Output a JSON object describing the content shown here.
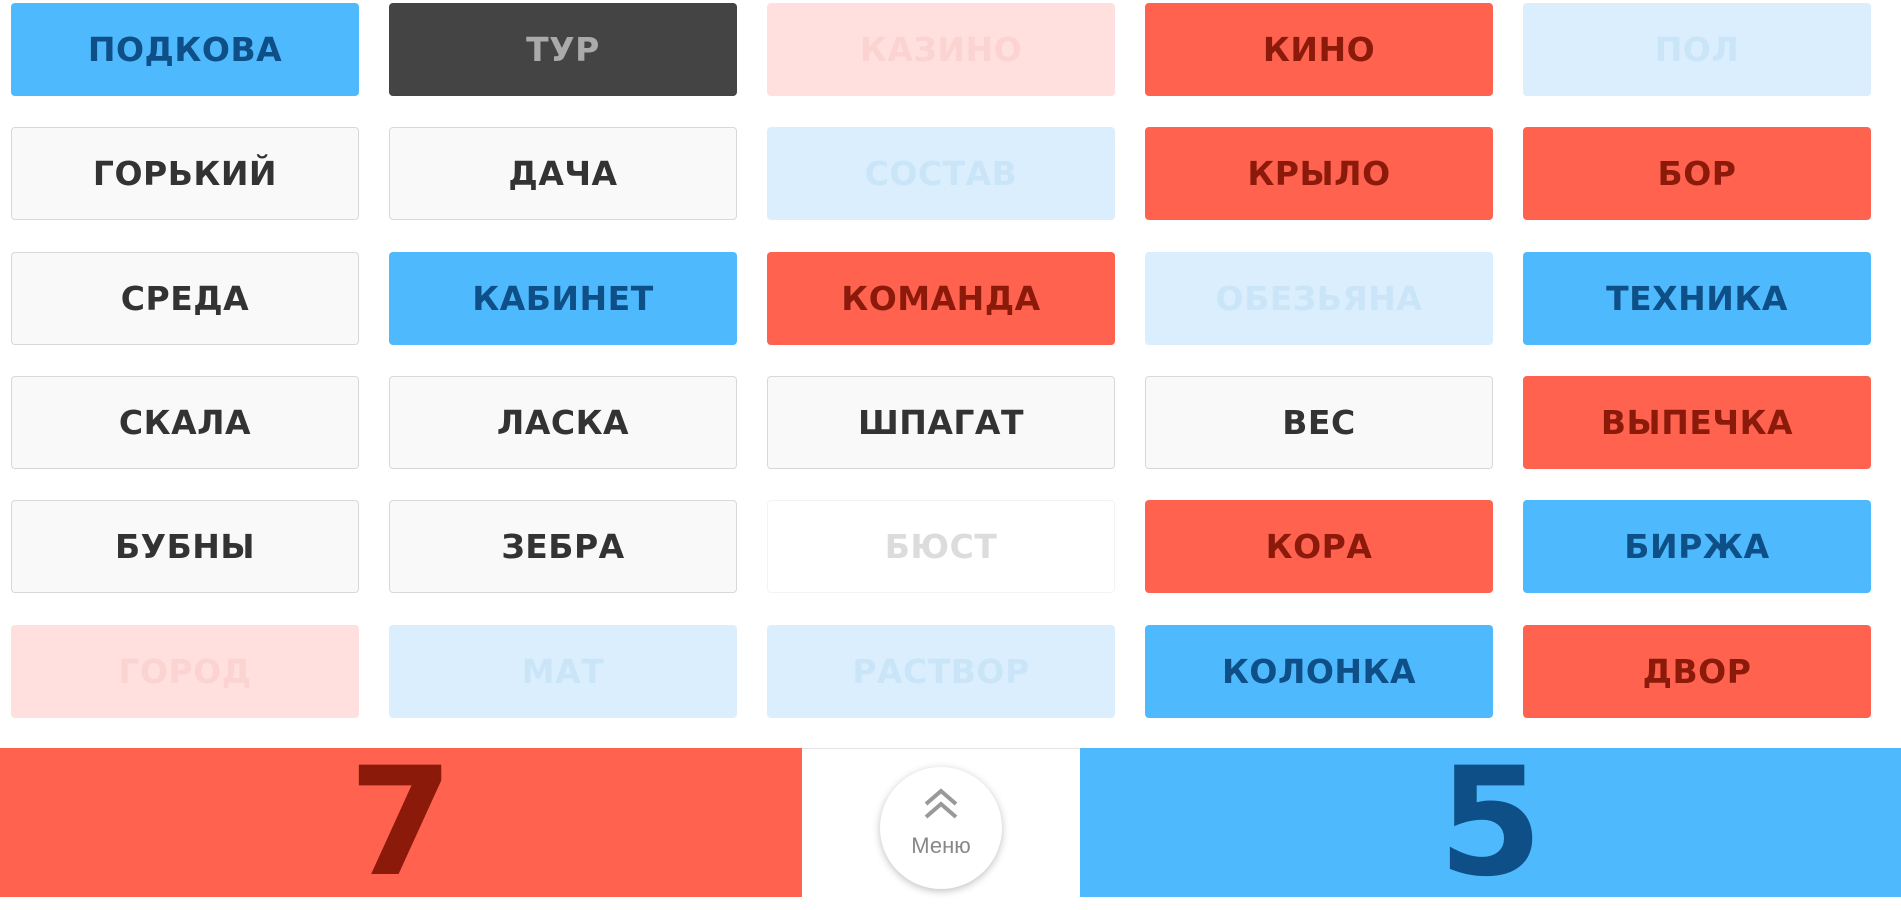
{
  "board": {
    "cards": [
      {
        "word": "ПОДКОВА",
        "state": "blue"
      },
      {
        "word": "ТУР",
        "state": "assassin"
      },
      {
        "word": "КАЗИНО",
        "state": "red-faded"
      },
      {
        "word": "КИНО",
        "state": "red"
      },
      {
        "word": "ПОЛ",
        "state": "blue-faded"
      },
      {
        "word": "ГОРЬКИЙ",
        "state": "neutral"
      },
      {
        "word": "ДАЧА",
        "state": "neutral"
      },
      {
        "word": "СОСТАВ",
        "state": "blue-faded"
      },
      {
        "word": "КРЫЛО",
        "state": "red"
      },
      {
        "word": "БОР",
        "state": "red"
      },
      {
        "word": "СРЕДА",
        "state": "neutral"
      },
      {
        "word": "КАБИНЕТ",
        "state": "blue"
      },
      {
        "word": "КОМАНДА",
        "state": "red"
      },
      {
        "word": "ОБЕЗЬЯНА",
        "state": "blue-faded"
      },
      {
        "word": "ТЕХНИКА",
        "state": "blue"
      },
      {
        "word": "СКАЛА",
        "state": "neutral"
      },
      {
        "word": "ЛАСКА",
        "state": "neutral"
      },
      {
        "word": "ШПАГАТ",
        "state": "neutral"
      },
      {
        "word": "ВЕС",
        "state": "neutral"
      },
      {
        "word": "ВЫПЕЧКА",
        "state": "red"
      },
      {
        "word": "БУБНЫ",
        "state": "neutral"
      },
      {
        "word": "ЗЕБРА",
        "state": "neutral"
      },
      {
        "word": "БЮСТ",
        "state": "neutral-faded"
      },
      {
        "word": "КОРА",
        "state": "red"
      },
      {
        "word": "БИРЖА",
        "state": "blue"
      },
      {
        "word": "ГОРОД",
        "state": "red-faded"
      },
      {
        "word": "МАТ",
        "state": "blue-faded"
      },
      {
        "word": "РАСТВОР",
        "state": "blue-faded"
      },
      {
        "word": "КОЛОНКА",
        "state": "blue"
      },
      {
        "word": "ДВОР",
        "state": "red"
      }
    ]
  },
  "score": {
    "red": "7",
    "blue": "5"
  },
  "menu": {
    "label": "Меню"
  }
}
